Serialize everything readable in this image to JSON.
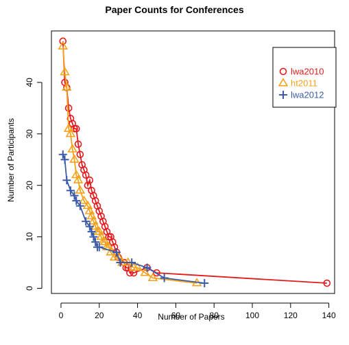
{
  "chart_data": {
    "type": "line",
    "title": "Paper Counts for Conferences",
    "xlabel": "Number of Papers",
    "ylabel": "Number of Participants",
    "xlim": [
      -5,
      143
    ],
    "ylim": [
      -1,
      50
    ],
    "xticks": [
      0,
      20,
      40,
      60,
      80,
      100,
      120,
      140
    ],
    "yticks": [
      0,
      10,
      20,
      30,
      40
    ],
    "grid": false,
    "legend_position": "top-right",
    "series": [
      {
        "name": "lwa2010",
        "marker": "circle",
        "color": "#e41a1c",
        "x": [
          1,
          2,
          3,
          4,
          5,
          6,
          7,
          8,
          9,
          10,
          11,
          12,
          13,
          14,
          15,
          16,
          17,
          18,
          19,
          20,
          21,
          22,
          23,
          24,
          25,
          26,
          27,
          28,
          29,
          30,
          33,
          34,
          35,
          36,
          38,
          45,
          50,
          139
        ],
        "y": [
          48,
          40,
          39,
          35,
          33,
          32,
          31,
          31,
          28,
          26,
          24,
          23,
          22,
          20,
          21,
          19,
          18,
          17,
          16,
          15,
          14,
          13,
          12,
          11,
          10,
          10,
          9,
          8,
          7,
          6,
          5,
          4,
          4,
          3,
          3,
          4,
          3,
          1
        ]
      },
      {
        "name": "ht2011",
        "marker": "triangle",
        "color": "#f4a21c",
        "x": [
          1,
          2,
          3,
          4,
          5,
          6,
          7,
          8,
          9,
          10,
          12,
          14,
          15,
          16,
          17,
          18,
          19,
          20,
          21,
          22,
          23,
          24,
          25,
          26,
          28,
          30,
          32,
          35,
          38,
          40,
          44,
          48,
          71
        ],
        "y": [
          47,
          42,
          39,
          31,
          30,
          27,
          25,
          22,
          21,
          19,
          17,
          16,
          15,
          14,
          13,
          12,
          11,
          11,
          10,
          9,
          9,
          8,
          8,
          7,
          6,
          6,
          5,
          5,
          4,
          4,
          3,
          2,
          1
        ]
      },
      {
        "name": "lwa2012",
        "marker": "plus",
        "color": "#3b5ba9",
        "x": [
          1,
          2,
          3,
          5,
          7,
          8,
          10,
          13,
          15,
          16,
          17,
          18,
          19,
          20,
          29,
          31,
          37,
          45,
          54,
          75
        ],
        "y": [
          26,
          25,
          21,
          19,
          18,
          17,
          16,
          13,
          12,
          11,
          10,
          9,
          8,
          8,
          7,
          5,
          5,
          4,
          2,
          1
        ]
      }
    ]
  }
}
